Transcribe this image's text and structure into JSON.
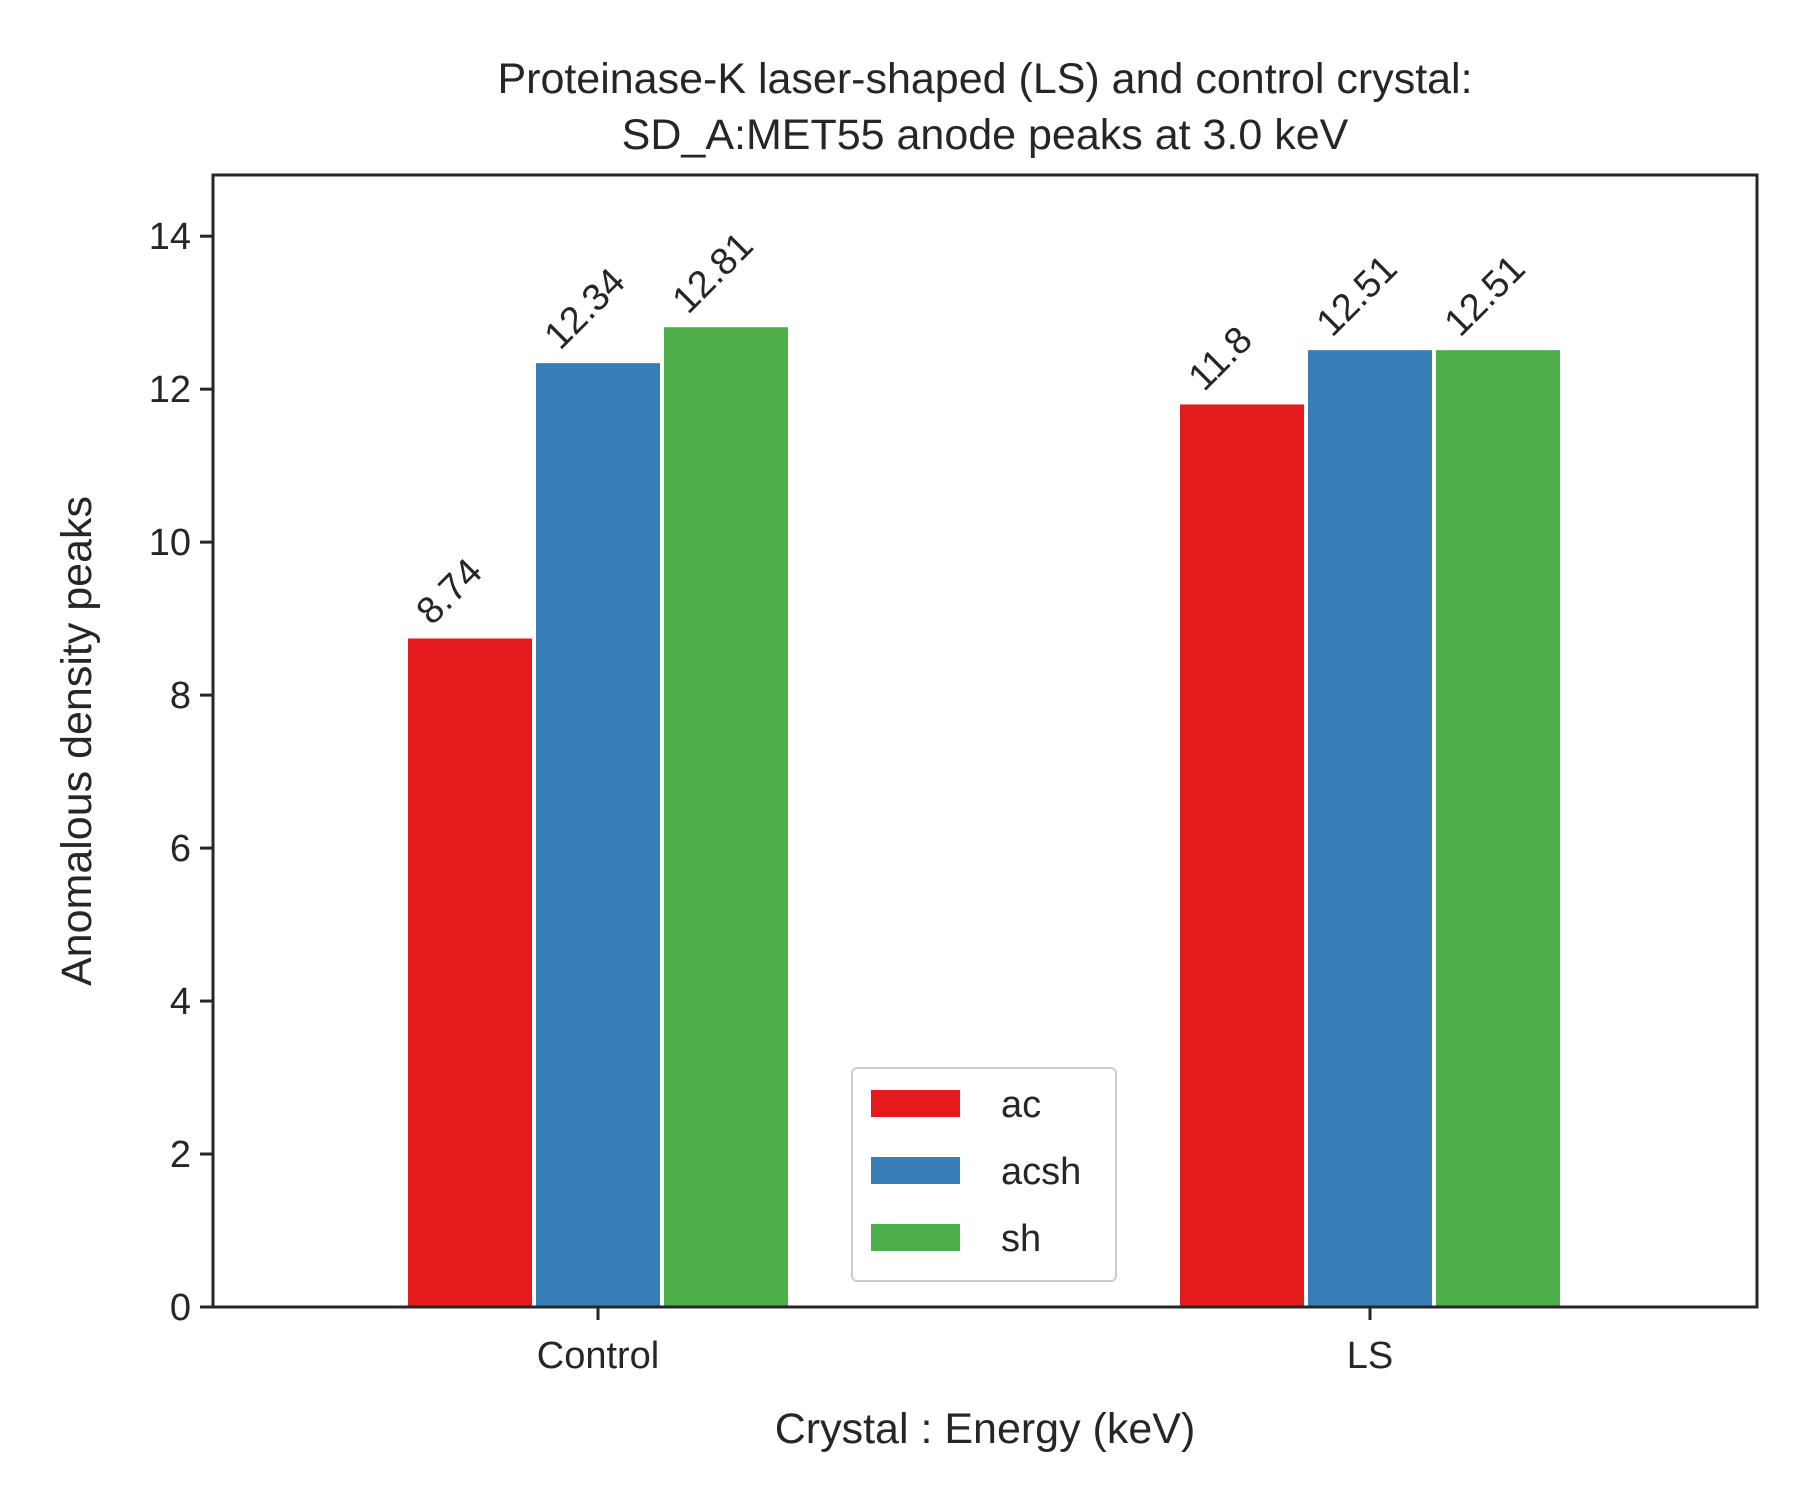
{
  "chart_data": {
    "type": "bar",
    "title": "Proteinase-K laser-shaped (LS) and control crystal:",
    "subtitle": "SD_A:MET55 anode peaks at 3.0 keV",
    "xlabel": "Crystal : Energy (keV)",
    "ylabel": "Anomalous density peaks",
    "categories": [
      "Control",
      "LS"
    ],
    "series": [
      {
        "name": "ac",
        "color": "#e41a1c",
        "values": [
          8.74,
          11.8
        ],
        "labels": [
          "8.74",
          "11.8"
        ]
      },
      {
        "name": "acsh",
        "color": "#377eb8",
        "values": [
          12.34,
          12.51
        ],
        "labels": [
          "12.34",
          "12.51"
        ]
      },
      {
        "name": "sh",
        "color": "#4daf4a",
        "values": [
          12.81,
          12.51
        ],
        "labels": [
          "12.81",
          "12.51"
        ]
      }
    ],
    "ylim": [
      0,
      14.8
    ],
    "yticks": [
      0,
      2,
      4,
      6,
      8,
      10,
      12,
      14
    ],
    "ytick_labels": [
      "0",
      "2",
      "4",
      "6",
      "8",
      "10",
      "12",
      "14"
    ],
    "grid": false,
    "legend_position": "bottom-center"
  }
}
